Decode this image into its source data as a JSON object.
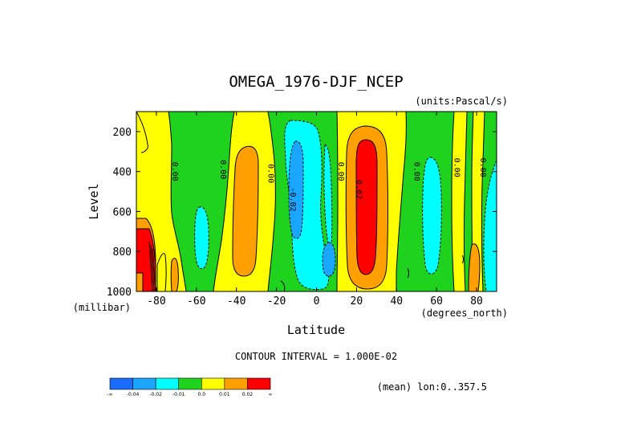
{
  "chart_data": {
    "type": "heatmap",
    "title": "OMEGA_1976-DJF_NCEP",
    "units_label": "(units:Pascal/s)",
    "xlabel": "Latitude",
    "ylabel": "Level",
    "x_unit": "(degrees_north)",
    "y_unit": "(millibar)",
    "xlim": [
      -90,
      90
    ],
    "ylim": [
      1000,
      100
    ],
    "x_ticks": [
      -80,
      -60,
      -40,
      -20,
      0,
      20,
      40,
      60,
      80
    ],
    "x_tick_labels": [
      "-80",
      "-60",
      "-40",
      "-20",
      "0",
      "20",
      "40",
      "60",
      "80"
    ],
    "y_ticks": [
      200,
      400,
      600,
      800,
      1000
    ],
    "y_tick_labels": [
      "200",
      "400",
      "600",
      "800",
      "1000"
    ],
    "contour_interval_text": "CONTOUR INTERVAL = 1.000E-02",
    "footer_text": "(mean) lon:0..357.5",
    "levels": [
      -0.04,
      -0.02,
      -0.01,
      0.0,
      0.01,
      0.02
    ],
    "colorbar_labels": [
      "-∞",
      "-0.04",
      "-0.02",
      "-0.01",
      "0.0",
      "0.01",
      "0.02",
      "∞"
    ],
    "colors": [
      "#1a6cff",
      "#1aa6ff",
      "#00ffff",
      "#1ed21e",
      "#ffff00",
      "#ff9f00",
      "#ff0000"
    ],
    "contour_labels": [
      {
        "text": "0.00",
        "lat": -72,
        "lev": 400
      },
      {
        "text": "0.00",
        "lat": -48,
        "lev": 390
      },
      {
        "text": "0.00",
        "lat": -24,
        "lev": 410
      },
      {
        "text": "-0.02",
        "lat": -13,
        "lev": 540
      },
      {
        "text": "0.00",
        "lat": 11,
        "lev": 400
      },
      {
        "text": "0.02",
        "lat": 20,
        "lev": 490
      },
      {
        "text": "0.00",
        "lat": 49,
        "lev": 400
      },
      {
        "text": "0.00",
        "lat": 69,
        "lev": 380
      },
      {
        "text": "0.00",
        "lat": 82,
        "lev": 380
      }
    ]
  }
}
